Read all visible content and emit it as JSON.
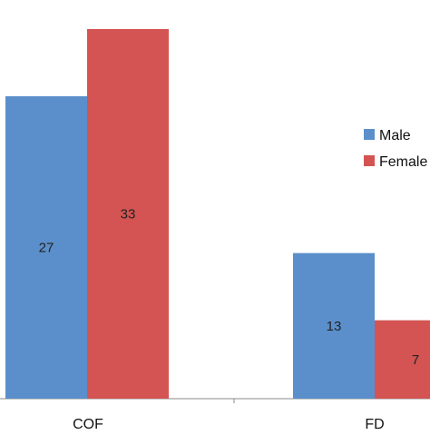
{
  "chart_data": {
    "type": "bar",
    "categories": [
      "COF",
      "FD"
    ],
    "series": [
      {
        "name": "Male",
        "values": [
          27,
          13
        ],
        "color": "#5B8FCB"
      },
      {
        "name": "Female",
        "values": [
          33,
          7
        ],
        "color": "#D35452"
      }
    ],
    "data_labels": true,
    "ylim": [
      0,
      35
    ],
    "grid": false,
    "legend": {
      "placement": "right",
      "entries": [
        "Male",
        "Female"
      ]
    },
    "title": "",
    "xlabel": "",
    "ylabel": ""
  }
}
